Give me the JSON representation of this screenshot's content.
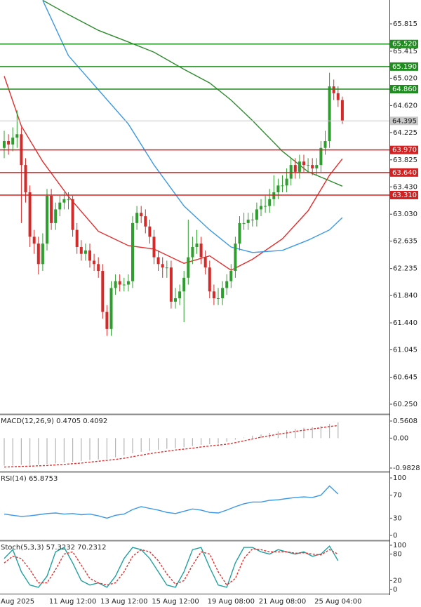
{
  "chart_data": [
    {
      "type": "candlestick",
      "categories": [
        "Aug 2025",
        null,
        null,
        null,
        null,
        null,
        null,
        null,
        null,
        null,
        null,
        null,
        null,
        null,
        null,
        null,
        "11 Aug 12:00",
        null,
        null,
        null,
        null,
        null,
        null,
        null,
        null,
        null,
        null,
        null,
        "13 Aug 12:00",
        null,
        null,
        null,
        null,
        null,
        null,
        null,
        null,
        null,
        null,
        null,
        "15 Aug 12:00",
        null,
        null,
        null,
        null,
        null,
        null,
        null,
        null,
        null,
        null,
        null,
        null,
        "19 Aug 08:00",
        null,
        null,
        null,
        null,
        null,
        null,
        null,
        null,
        null,
        null,
        null,
        "21 Aug 08:00",
        null,
        null,
        null,
        null,
        null,
        null,
        null,
        null,
        null,
        null,
        null,
        null,
        "25 Aug 04:00",
        null
      ],
      "open": [
        64.0,
        64.1,
        64.05,
        64.15,
        64.2,
        63.75,
        63.35,
        62.7,
        62.6,
        62.3,
        62.6,
        63.3,
        62.9,
        63.1,
        63.2,
        63.25,
        63.25,
        62.8,
        62.55,
        62.45,
        62.5,
        62.35,
        62.3,
        62.2,
        61.6,
        61.35,
        61.95,
        62.05,
        62.0,
        62.0,
        62.05,
        62.9,
        63.05,
        63.0,
        62.85,
        62.7,
        62.4,
        62.3,
        62.25,
        62.25,
        61.75,
        61.8,
        61.9,
        62.1,
        62.4,
        62.55,
        62.6,
        62.4,
        62.25,
        61.9,
        61.8,
        61.8,
        61.95,
        62.05,
        62.2,
        62.6,
        62.9,
        62.9,
        62.95,
        62.95,
        63.1,
        63.15,
        63.15,
        63.25,
        63.35,
        63.45,
        63.45,
        63.55,
        63.75,
        63.65,
        63.8,
        63.75,
        63.75,
        63.7,
        63.75,
        64.0,
        64.1,
        64.9,
        64.8,
        64.7
      ],
      "high": [
        64.25,
        64.2,
        64.3,
        64.55,
        64.3,
        63.85,
        63.45,
        62.8,
        62.7,
        62.75,
        63.4,
        63.4,
        63.2,
        63.3,
        63.35,
        63.35,
        63.3,
        62.9,
        62.65,
        62.6,
        62.6,
        62.45,
        62.4,
        62.3,
        61.7,
        62.05,
        62.15,
        62.15,
        62.1,
        62.15,
        63.0,
        63.15,
        63.15,
        63.1,
        62.95,
        62.8,
        62.5,
        62.4,
        62.35,
        62.35,
        61.95,
        62.0,
        62.2,
        62.95,
        62.7,
        62.8,
        62.7,
        62.5,
        62.35,
        62.0,
        61.95,
        62.05,
        62.15,
        62.3,
        62.7,
        63.0,
        63.05,
        63.05,
        63.05,
        63.2,
        63.25,
        63.3,
        63.4,
        63.6,
        63.55,
        63.6,
        63.7,
        63.85,
        63.85,
        63.9,
        63.9,
        63.85,
        63.85,
        63.85,
        64.1,
        64.25,
        65.1,
        65.0,
        64.9,
        64.75
      ],
      "low": [
        63.85,
        63.9,
        63.95,
        64.0,
        62.9,
        63.2,
        62.55,
        62.45,
        62.15,
        62.2,
        62.5,
        62.8,
        62.8,
        63.0,
        63.1,
        63.1,
        62.7,
        62.45,
        62.35,
        62.35,
        62.25,
        62.2,
        62.1,
        61.5,
        61.25,
        61.25,
        61.85,
        61.9,
        61.9,
        61.9,
        61.95,
        62.8,
        62.9,
        62.75,
        62.6,
        62.3,
        62.2,
        62.1,
        62.1,
        61.65,
        61.65,
        61.7,
        61.45,
        62.0,
        62.3,
        62.45,
        62.3,
        62.15,
        61.8,
        61.7,
        61.7,
        61.7,
        61.85,
        61.95,
        62.1,
        62.5,
        62.8,
        62.8,
        62.85,
        62.85,
        63.0,
        63.05,
        63.05,
        63.15,
        63.25,
        63.35,
        63.35,
        63.45,
        63.55,
        63.55,
        63.65,
        63.65,
        63.6,
        63.6,
        63.65,
        63.9,
        64.0,
        64.7,
        64.6,
        64.35
      ],
      "close": [
        64.1,
        64.05,
        64.15,
        64.2,
        63.75,
        63.35,
        62.7,
        62.6,
        62.3,
        62.6,
        63.3,
        62.9,
        63.1,
        63.2,
        63.25,
        63.25,
        62.8,
        62.55,
        62.45,
        62.5,
        62.35,
        62.3,
        62.2,
        61.6,
        61.35,
        61.95,
        62.05,
        62.0,
        62.0,
        62.05,
        62.9,
        63.05,
        63.0,
        62.85,
        62.7,
        62.4,
        62.3,
        62.25,
        62.25,
        61.75,
        61.8,
        61.9,
        62.1,
        62.4,
        62.55,
        62.6,
        62.4,
        62.25,
        61.9,
        61.8,
        61.8,
        61.95,
        62.05,
        62.2,
        62.6,
        62.9,
        62.9,
        62.95,
        62.95,
        63.1,
        63.15,
        63.15,
        63.25,
        63.35,
        63.45,
        63.45,
        63.55,
        63.75,
        63.65,
        63.8,
        63.75,
        63.75,
        63.7,
        63.75,
        64.0,
        64.1,
        64.9,
        64.8,
        64.7,
        64.4
      ],
      "colors": {
        "up": "#2e9e2e",
        "down": "#d42a2a"
      },
      "ylim": [
        60.106,
        66.164
      ],
      "yticks": [
        65.815,
        65.415,
        {
          "value": 65.02,
          "label": "65.020"
        },
        {
          "value": 64.62,
          "label": "64.620"
        },
        64.225,
        63.825,
        {
          "value": 63.43,
          "label": "63.430"
        },
        {
          "value": 63.03,
          "label": "63.030"
        },
        62.635,
        62.235,
        {
          "value": 61.84,
          "label": "61.840"
        },
        {
          "value": 61.44,
          "label": "61.440"
        },
        61.045,
        60.645,
        {
          "value": 60.25,
          "label": "60.250"
        }
      ],
      "moving_averages": [
        {
          "color": "#e52b2b",
          "x": [
            0,
            4,
            9,
            15,
            22,
            29,
            35,
            42,
            48,
            53,
            58,
            65,
            71,
            76,
            79
          ],
          "values": [
            65.05,
            64.32,
            63.8,
            63.29,
            62.78,
            62.57,
            62.52,
            62.31,
            62.42,
            62.21,
            62.37,
            62.67,
            63.08,
            63.6,
            63.84
          ]
        },
        {
          "color": "#2e8b2e",
          "x": [
            9,
            15,
            22,
            29,
            35,
            42,
            48,
            53,
            58,
            65,
            71,
            76,
            79
          ],
          "values": [
            66.16,
            65.95,
            65.72,
            65.55,
            65.4,
            65.15,
            64.95,
            64.7,
            64.4,
            63.95,
            63.65,
            63.52,
            63.44
          ]
        },
        {
          "color": "#3a98e6",
          "x": [
            9,
            15,
            22,
            29,
            35,
            42,
            48,
            53,
            58,
            65,
            71,
            76,
            79
          ],
          "values": [
            66.16,
            65.35,
            64.85,
            64.35,
            63.75,
            63.15,
            62.8,
            62.55,
            62.47,
            62.5,
            62.65,
            62.8,
            62.98
          ]
        }
      ],
      "levels": [
        {
          "value": 65.52,
          "label": "65.520",
          "color": "#1e8c1e"
        },
        {
          "value": 65.19,
          "label": "65.190",
          "color": "#1e8c1e"
        },
        {
          "value": 64.86,
          "label": "64.860",
          "color": "#1e8c1e"
        },
        {
          "value": 63.97,
          "label": "63.970",
          "color": "#d42020"
        },
        {
          "value": 63.64,
          "label": "63.640",
          "color": "#d42020"
        },
        {
          "value": 63.31,
          "label": "63.310",
          "color": "#d42020"
        }
      ],
      "current_price": {
        "value": 64.395,
        "label": "64.395",
        "color": "#c8c8c8"
      }
    },
    {
      "type": "macd",
      "title": "MACD(12,26,9) 0.4705 0.4092",
      "x": [
        0,
        2,
        4,
        6,
        8,
        10,
        12,
        14,
        16,
        18,
        20,
        22,
        24,
        26,
        28,
        30,
        32,
        34,
        36,
        38,
        40,
        42,
        44,
        46,
        48,
        50,
        52,
        54,
        56,
        58,
        60,
        62,
        64,
        66,
        68,
        70,
        72,
        74,
        76,
        78
      ],
      "histogram": [
        -0.9,
        -0.9,
        -0.88,
        -0.88,
        -0.87,
        -0.85,
        -0.83,
        -0.8,
        -0.78,
        -0.75,
        -0.72,
        -0.7,
        -0.68,
        -0.63,
        -0.57,
        -0.5,
        -0.45,
        -0.42,
        -0.38,
        -0.35,
        -0.33,
        -0.3,
        -0.26,
        -0.22,
        -0.2,
        -0.18,
        -0.12,
        -0.05,
        0.02,
        0.08,
        0.12,
        0.17,
        0.22,
        0.26,
        0.3,
        0.34,
        0.36,
        0.4,
        0.47,
        0.52
      ],
      "signal": [
        -0.95,
        -0.94,
        -0.93,
        -0.92,
        -0.91,
        -0.9,
        -0.88,
        -0.86,
        -0.84,
        -0.82,
        -0.79,
        -0.76,
        -0.73,
        -0.7,
        -0.66,
        -0.61,
        -0.56,
        -0.51,
        -0.47,
        -0.43,
        -0.39,
        -0.36,
        -0.33,
        -0.29,
        -0.26,
        -0.23,
        -0.2,
        -0.15,
        -0.09,
        -0.03,
        0.03,
        0.08,
        0.13,
        0.17,
        0.22,
        0.26,
        0.3,
        0.34,
        0.38,
        0.41
      ],
      "colors": {
        "histogram": "#b4b4b4",
        "signal": "#e03030"
      },
      "ylim": [
        -1.098,
        0.745
      ],
      "yticks": [
        0.5608,
        {
          "value": 0,
          "label": "0.00"
        },
        -0.9828
      ]
    },
    {
      "type": "line",
      "title": "RSI(14) 65.8753",
      "x": [
        0,
        2,
        4,
        6,
        8,
        10,
        12,
        14,
        16,
        18,
        20,
        22,
        24,
        26,
        28,
        30,
        32,
        34,
        36,
        38,
        40,
        42,
        44,
        46,
        48,
        50,
        52,
        54,
        56,
        58,
        60,
        62,
        64,
        66,
        68,
        70,
        72,
        74,
        76,
        78
      ],
      "series": [
        {
          "color": "#3a98e6",
          "values": [
            37,
            35,
            33,
            34,
            36,
            38,
            39,
            37,
            38,
            36,
            37,
            34,
            30,
            35,
            37,
            45,
            50,
            47,
            44,
            40,
            38,
            42,
            46,
            44,
            40,
            39,
            44,
            50,
            55,
            58,
            58,
            61,
            62,
            64,
            66,
            67,
            66,
            70,
            86,
            72
          ]
        }
      ],
      "ylim": [
        -8.6,
        108.6
      ],
      "yticks": [
        100,
        70,
        30,
        0
      ]
    },
    {
      "type": "line",
      "title": "Stoch(5,3,3) 57.3232 70.2312",
      "x": [
        0,
        2,
        4,
        6,
        8,
        10,
        12,
        14,
        16,
        18,
        20,
        22,
        24,
        26,
        28,
        30,
        32,
        34,
        36,
        38,
        40,
        42,
        44,
        46,
        48,
        50,
        52,
        54,
        56,
        58,
        60,
        62,
        64,
        66,
        68,
        70,
        72,
        74,
        76,
        78
      ],
      "series": [
        {
          "color": "#20a0a0",
          "values": [
            70,
            90,
            40,
            10,
            5,
            30,
            85,
            95,
            60,
            20,
            10,
            15,
            5,
            30,
            70,
            95,
            90,
            70,
            40,
            10,
            5,
            40,
            90,
            95,
            50,
            10,
            5,
            60,
            95,
            95,
            85,
            80,
            90,
            85,
            80,
            85,
            75,
            80,
            98,
            65
          ]
        },
        {
          "color": "#e03030",
          "dashed": true,
          "values": [
            60,
            75,
            70,
            45,
            15,
            15,
            45,
            80,
            85,
            55,
            25,
            15,
            10,
            15,
            40,
            75,
            90,
            85,
            65,
            35,
            12,
            20,
            55,
            85,
            80,
            40,
            10,
            25,
            70,
            92,
            90,
            85,
            85,
            85,
            82,
            83,
            80,
            78,
            90,
            80
          ]
        }
      ],
      "ylim": [
        -7.9,
        107.9
      ],
      "yticks": [
        100,
        80,
        20,
        0
      ]
    }
  ]
}
